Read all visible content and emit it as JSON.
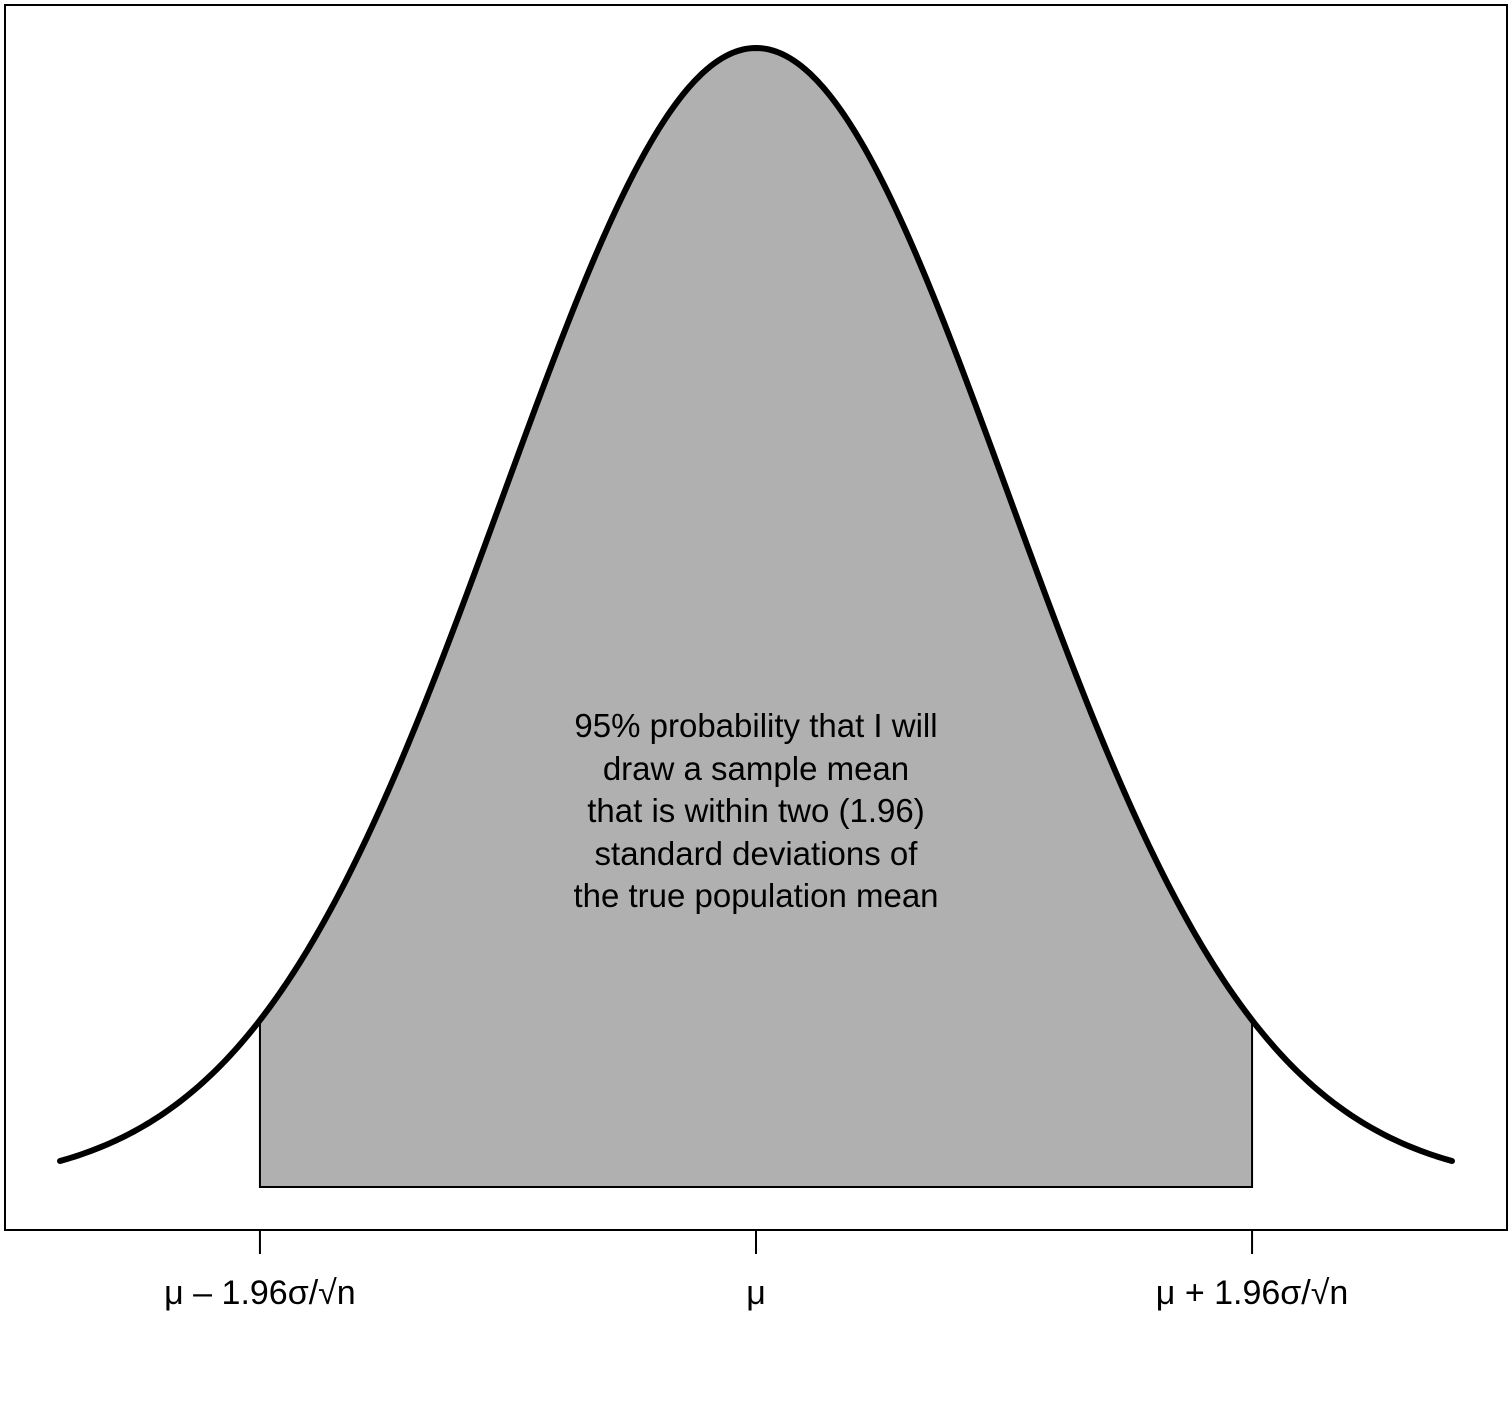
{
  "chart_data": {
    "type": "area",
    "title": "",
    "xlabel": "",
    "ylabel": "",
    "distribution": "normal",
    "mean": 0,
    "sd": 1,
    "xlim": [
      -2.75,
      2.75
    ],
    "shaded_interval": [
      -1.96,
      1.96
    ],
    "shaded_probability": 0.95,
    "fill_color": "#b0b0b0",
    "line_color": "#000000",
    "grid": false,
    "x_ticks": [
      {
        "value": -1.96,
        "label": "μ – 1.96σ/√n"
      },
      {
        "value": 0,
        "label": "μ"
      },
      {
        "value": 1.96,
        "label": "μ + 1.96σ/√n"
      }
    ],
    "annotation": {
      "lines": [
        "95% probability that I will",
        "draw a sample mean",
        "that is within two (1.96)",
        "standard deviations of",
        "the true population mean"
      ]
    }
  }
}
